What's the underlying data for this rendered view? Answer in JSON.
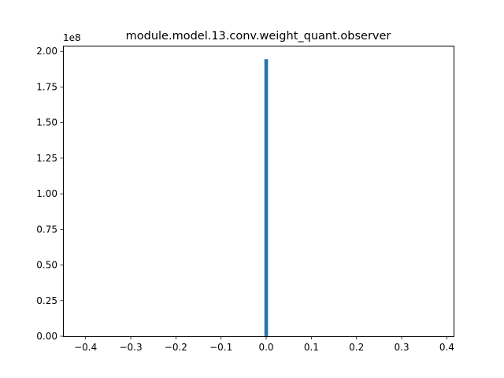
{
  "chart_data": {
    "type": "bar",
    "title": "module.model.13.conv.weight_quant.observer",
    "xlabel": "",
    "ylabel": "",
    "y_offset_label": "1e8",
    "y_scale": 100000000,
    "xlim": [
      -0.45,
      0.415
    ],
    "ylim": [
      0,
      2.04
    ],
    "x_ticks": [
      -0.4,
      -0.3,
      -0.2,
      -0.1,
      0.0,
      0.1,
      0.2,
      0.3,
      0.4
    ],
    "x_tick_labels": [
      "−0.4",
      "−0.3",
      "−0.2",
      "−0.1",
      "0.0",
      "0.1",
      "0.2",
      "0.3",
      "0.4"
    ],
    "y_ticks": [
      0.0,
      0.25,
      0.5,
      0.75,
      1.0,
      1.25,
      1.5,
      1.75,
      2.0
    ],
    "y_tick_labels": [
      "0.00",
      "0.25",
      "0.50",
      "0.75",
      "1.00",
      "1.25",
      "1.50",
      "1.75",
      "2.00"
    ],
    "bars": [
      {
        "x_start": -0.004,
        "x_end": 0.004,
        "value": 1.945
      }
    ],
    "grid": false,
    "legend": "none",
    "bar_color": "#1f77b4"
  }
}
